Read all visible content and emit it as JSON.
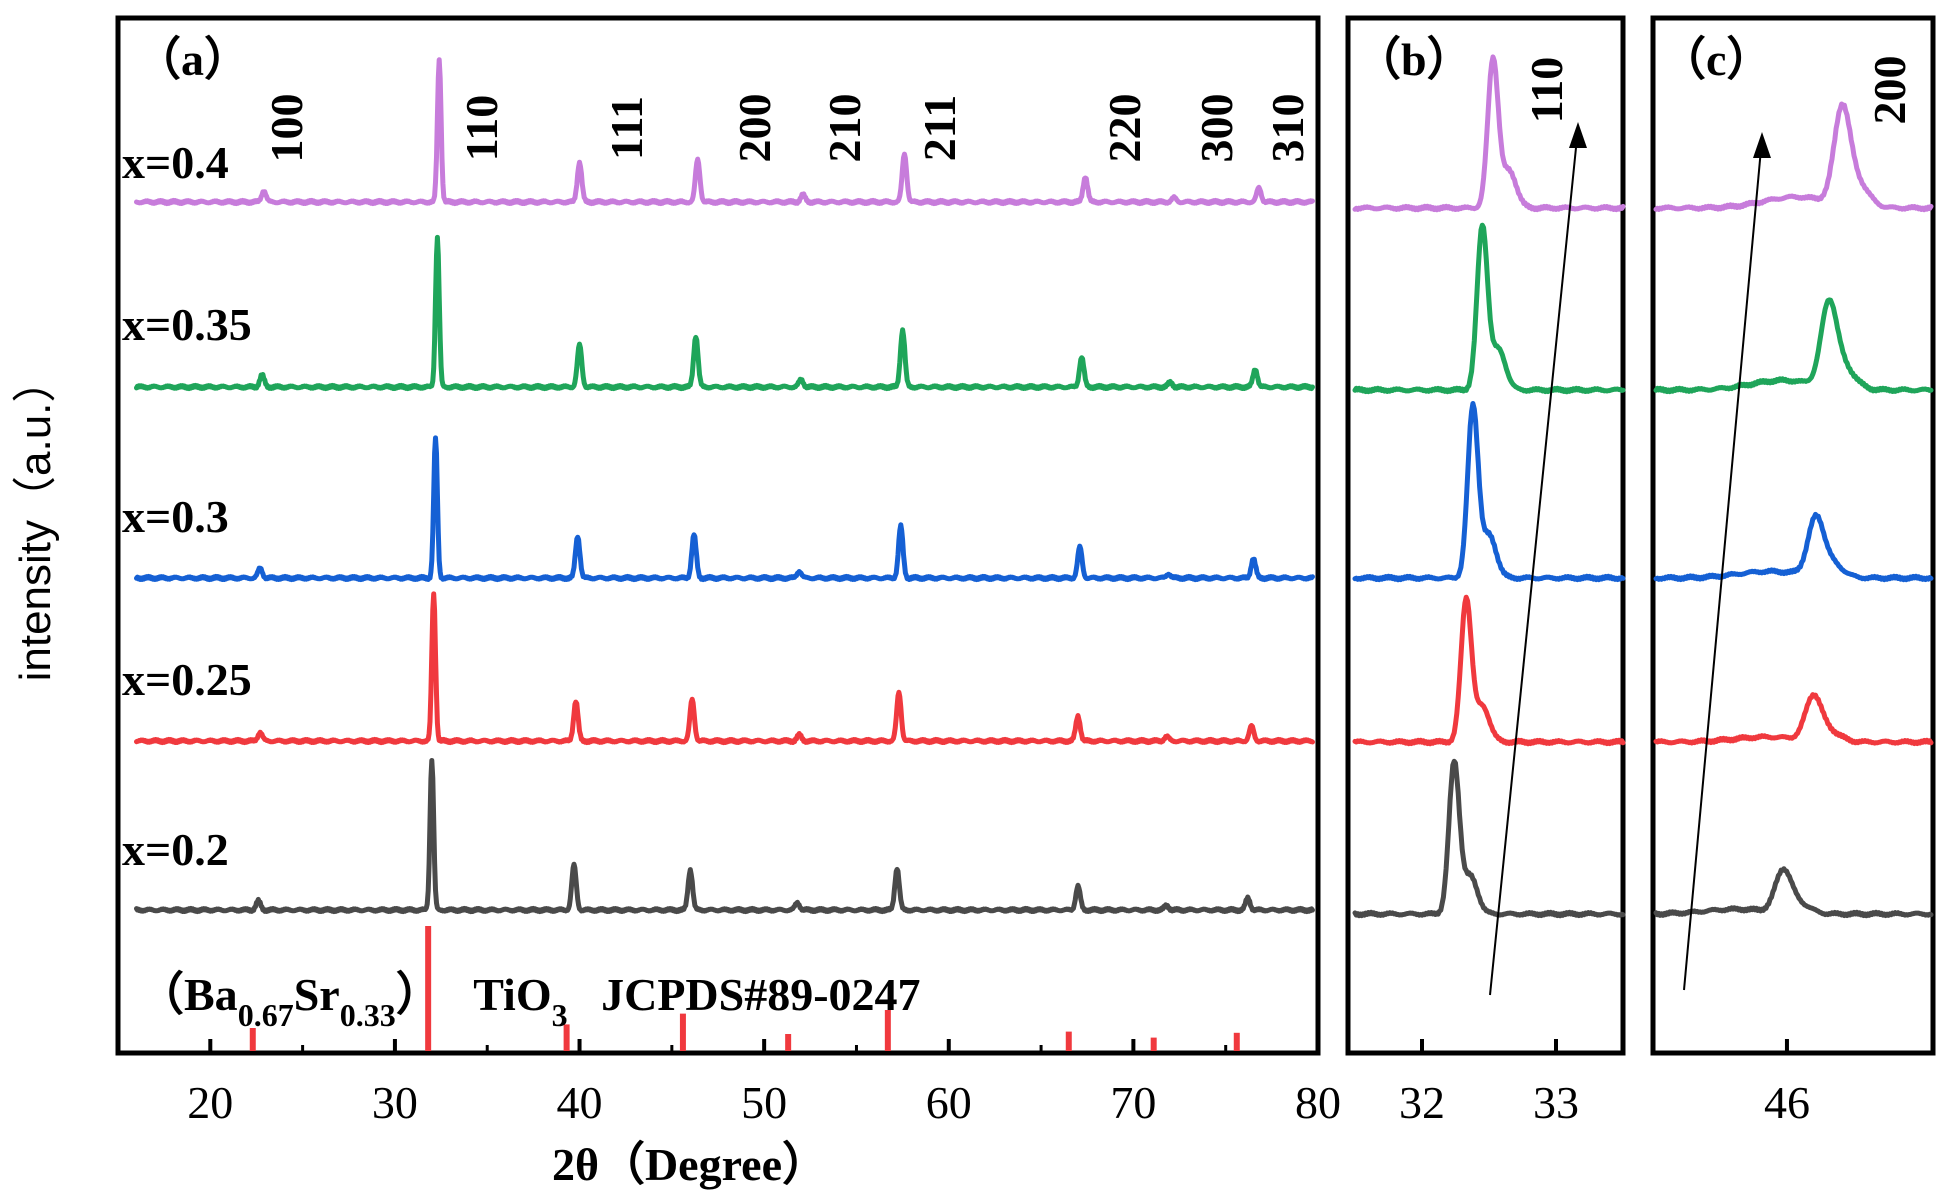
{
  "chart_data": [
    {
      "panel": "(a)",
      "type": "line",
      "title": "（a）",
      "xlabel": "2θ（Degree）",
      "ylabel": "intensity（a.u.）",
      "xlim": [
        15,
        80
      ],
      "xticks": [
        "20",
        "30",
        "40",
        "50",
        "60",
        "70",
        "80"
      ],
      "series": [
        {
          "name": "x=0.4",
          "color": "#C77CDB",
          "peaks": [
            [
              22.9,
              0.08
            ],
            [
              32.4,
              1.0
            ],
            [
              40.0,
              0.28
            ],
            [
              46.4,
              0.3
            ],
            [
              52.1,
              0.05
            ],
            [
              57.6,
              0.34
            ],
            [
              67.4,
              0.18
            ],
            [
              72.2,
              0.03
            ],
            [
              76.8,
              0.1
            ]
          ]
        },
        {
          "name": "x=0.35",
          "color": "#1FA55A",
          "peaks": [
            [
              22.8,
              0.08
            ],
            [
              32.3,
              1.0
            ],
            [
              40.0,
              0.28
            ],
            [
              46.3,
              0.34
            ],
            [
              52.0,
              0.05
            ],
            [
              57.5,
              0.38
            ],
            [
              67.2,
              0.2
            ],
            [
              72.0,
              0.03
            ],
            [
              76.6,
              0.12
            ]
          ]
        },
        {
          "name": "x=0.3",
          "color": "#1560D4",
          "peaks": [
            [
              22.7,
              0.07
            ],
            [
              32.2,
              1.0
            ],
            [
              39.9,
              0.3
            ],
            [
              46.2,
              0.31
            ],
            [
              51.9,
              0.05
            ],
            [
              57.4,
              0.37
            ],
            [
              67.1,
              0.22
            ],
            [
              71.9,
              0.03
            ],
            [
              76.5,
              0.14
            ]
          ]
        },
        {
          "name": "x=0.25",
          "color": "#F0393E",
          "peaks": [
            [
              22.7,
              0.06
            ],
            [
              32.1,
              1.0
            ],
            [
              39.8,
              0.27
            ],
            [
              46.1,
              0.28
            ],
            [
              51.9,
              0.04
            ],
            [
              57.3,
              0.33
            ],
            [
              67.0,
              0.17
            ],
            [
              71.8,
              0.03
            ],
            [
              76.4,
              0.1
            ]
          ]
        },
        {
          "name": "x=0.2",
          "color": "#4A4A4A",
          "peaks": [
            [
              22.6,
              0.06
            ],
            [
              32.0,
              1.0
            ],
            [
              39.7,
              0.3
            ],
            [
              46.0,
              0.27
            ],
            [
              51.8,
              0.05
            ],
            [
              57.2,
              0.28
            ],
            [
              67.0,
              0.16
            ],
            [
              71.8,
              0.03
            ],
            [
              76.2,
              0.08
            ]
          ]
        }
      ],
      "annotations": [
        "100",
        "110",
        "111",
        "200",
        "210",
        "211",
        "220",
        "300",
        "310"
      ],
      "reference": {
        "label_prefix": "（Ba",
        "sub1": "0.67",
        "label_mid": "Sr",
        "sub2": "0.33",
        "label_close": "）",
        "formula": "TiO",
        "formula_sub": "3",
        "card": "JCPDS#89-0247",
        "color": "#F0393E",
        "lines": [
          [
            22.3,
            0.15
          ],
          [
            31.8,
            1.0
          ],
          [
            39.3,
            0.18
          ],
          [
            45.6,
            0.27
          ],
          [
            51.3,
            0.1
          ],
          [
            56.7,
            0.3
          ],
          [
            66.5,
            0.12
          ],
          [
            71.1,
            0.07
          ],
          [
            75.6,
            0.11
          ]
        ]
      }
    },
    {
      "panel": "(b)",
      "type": "line",
      "title": "（b）",
      "annotation": "110",
      "xlim": [
        31.5,
        33.5
      ],
      "xticks": [
        "32",
        "33"
      ],
      "peaks": [
        32.53,
        32.45,
        32.38,
        32.33,
        32.24
      ]
    },
    {
      "panel": "(c)",
      "type": "line",
      "title": "（c）",
      "annotation": "200",
      "xlim": [
        45.0,
        47.1
      ],
      "xticks": [
        "46"
      ],
      "peaks": [
        46.42,
        46.32,
        46.22,
        46.2,
        45.97
      ]
    }
  ]
}
